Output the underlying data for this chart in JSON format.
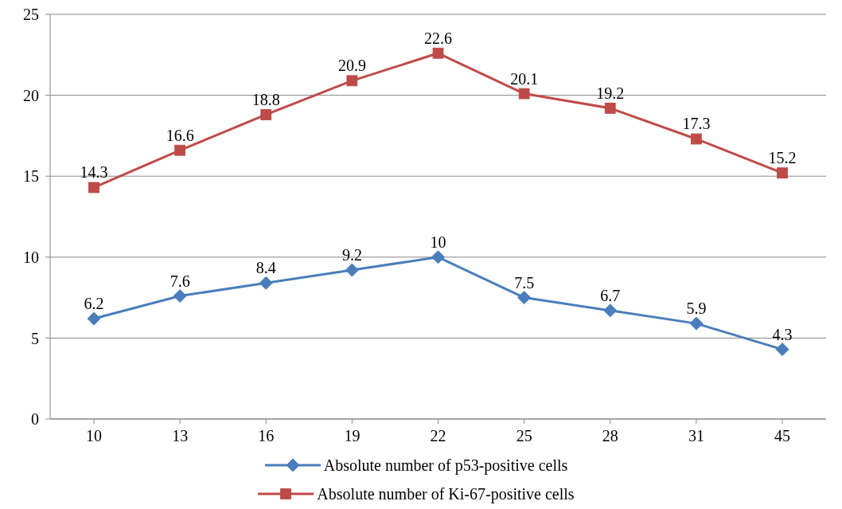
{
  "chart_data": {
    "type": "line",
    "categories": [
      "10",
      "13",
      "16",
      "19",
      "22",
      "25",
      "28",
      "31",
      "45"
    ],
    "series": [
      {
        "name": "Absolute number of p53-positive cells",
        "color": "#4a7ebb",
        "marker": "diamond",
        "values": [
          6.2,
          7.6,
          8.4,
          9.2,
          10,
          7.5,
          6.7,
          5.9,
          4.3
        ]
      },
      {
        "name": "Absolute number of Ki-67-positive cells",
        "color": "#be4b48",
        "marker": "square",
        "values": [
          14.3,
          16.6,
          18.8,
          20.9,
          22.6,
          20.1,
          19.2,
          17.3,
          15.2
        ]
      }
    ],
    "ylim": [
      0,
      25
    ],
    "yticks": [
      0,
      5,
      10,
      15,
      20,
      25
    ],
    "grid": "y",
    "legend": "bottom",
    "data_labels": true,
    "line_style": "solid"
  }
}
